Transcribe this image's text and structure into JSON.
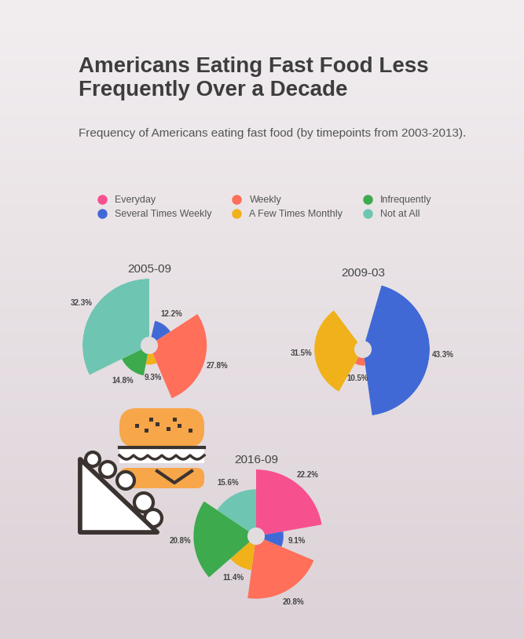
{
  "title": "Americans Eating Fast Food Less Frequently Over a Decade",
  "subtitle": "Frequency of Americans eating fast food (by timepoints from 2003-2013).",
  "legend": "upper center",
  "chart_data": [
    {
      "type": "rose",
      "title": "2005-09",
      "categories": [
        "Everyday",
        "Several Times Weekly",
        "Weekly",
        "A Few Times Monthly",
        "Infrequently",
        "Not at All"
      ],
      "values": [
        3.6,
        12.2,
        27.8,
        9.3,
        14.8,
        32.3
      ],
      "value_labels": [
        null,
        "12.2%",
        "27.8%",
        "9.3%",
        "14.8%",
        "32.3%"
      ],
      "colors": [
        "#f7508f",
        "#4169d6",
        "#ff6f5a",
        "#f0b11a",
        "#3daa4d",
        "#6ec6b2"
      ],
      "ylim": [
        0,
        32.3
      ],
      "data_labels": true,
      "tick_labels": false
    },
    {
      "type": "rose",
      "title": "2009-03",
      "categories": [
        "Everyday",
        "Several Times Weekly",
        "Weekly",
        "A Few Times Monthly",
        "Infrequently",
        "Not at All"
      ],
      "values": [
        4.5,
        43.3,
        10.5,
        31.5,
        5.0,
        5.2
      ],
      "value_labels": [
        null,
        "43.3%",
        "10.5%",
        "31.5%",
        null,
        null
      ],
      "colors": [
        "#f7508f",
        "#4169d6",
        "#ff6f5a",
        "#f0b11a",
        "#3daa4d",
        "#6ec6b2"
      ],
      "ylim": [
        0,
        43.3
      ],
      "data_labels": true,
      "tick_labels": false
    },
    {
      "type": "rose",
      "title": "2016-09",
      "categories": [
        "Everyday",
        "Several Times Weekly",
        "Weekly",
        "A Few Times Monthly",
        "Infrequently",
        "Not at All"
      ],
      "values": [
        22.2,
        9.1,
        20.8,
        11.4,
        20.8,
        15.6
      ],
      "value_labels": [
        "22.2%",
        "9.1%",
        "20.8%",
        "11.4%",
        "20.8%",
        "15.6%"
      ],
      "colors": [
        "#f7508f",
        "#4169d6",
        "#ff6f5a",
        "#f0b11a",
        "#3daa4d",
        "#6ec6b2"
      ],
      "ylim": [
        0,
        22.2
      ],
      "data_labels": true,
      "tick_labels": false
    }
  ]
}
